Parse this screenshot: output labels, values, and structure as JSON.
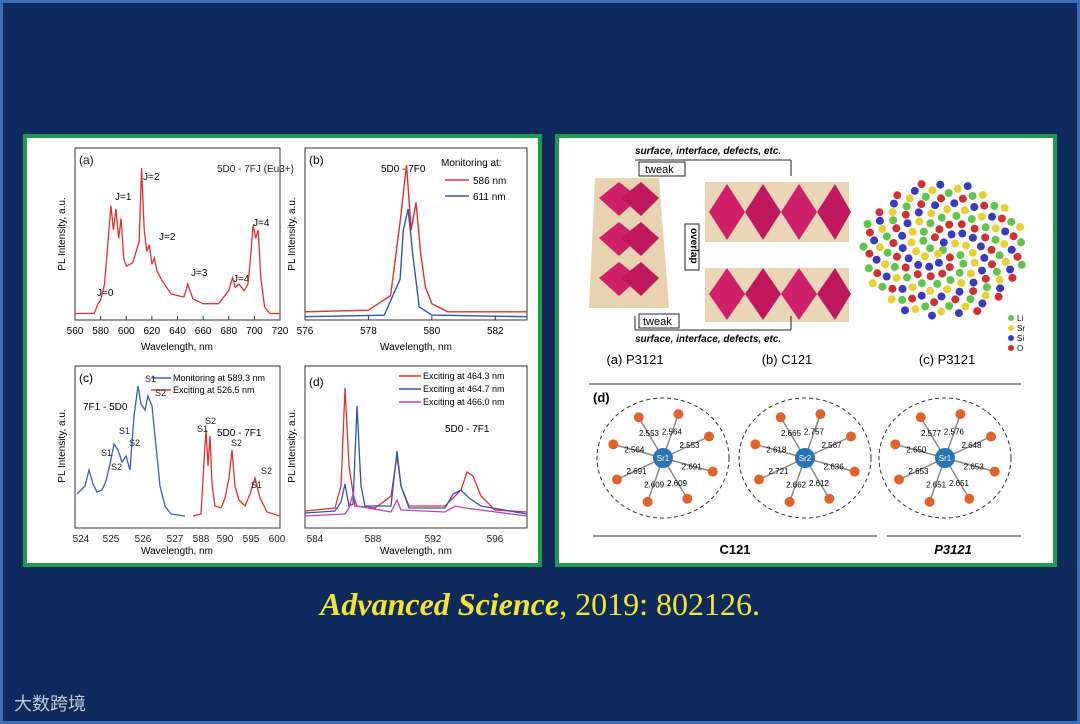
{
  "caption": {
    "journal": "Advanced Science",
    "details": ", 2019: 802126."
  },
  "watermark": "大数跨境",
  "colors": {
    "background": "#0e2a5c",
    "panel_border": "#1f9a4c",
    "caption": "#f3e52e"
  },
  "chart_data": [
    {
      "panel": "(a)",
      "type": "line",
      "xlabel": "Wavelength, nm",
      "ylabel": "PL Intensity, a.u.",
      "xlim": [
        560,
        720
      ],
      "xticks": [
        560,
        580,
        600,
        620,
        640,
        660,
        680,
        700,
        720
      ],
      "legend_title": "5D0 - 7FJ (Eu3+)",
      "annotations": [
        "J=0",
        "J=1",
        "J=2",
        "J=2",
        "J=3",
        "J=4",
        "J=4"
      ],
      "series": [
        {
          "color": "#e03030",
          "x": [
            560,
            575,
            578,
            580,
            583,
            586,
            588,
            590,
            592,
            594,
            596,
            598,
            600,
            605,
            610,
            612,
            614,
            616,
            618,
            620,
            622,
            624,
            628,
            635,
            645,
            648,
            652,
            660,
            672,
            680,
            683,
            685,
            688,
            692,
            695,
            697,
            699,
            701,
            703,
            705,
            708,
            712,
            720
          ],
          "y": [
            0.04,
            0.04,
            0.1,
            0.12,
            0.22,
            0.5,
            0.7,
            0.55,
            0.68,
            0.5,
            0.62,
            0.38,
            0.33,
            0.35,
            0.48,
            0.93,
            0.55,
            0.42,
            0.46,
            0.34,
            0.38,
            0.3,
            0.24,
            0.16,
            0.14,
            0.22,
            0.13,
            0.1,
            0.1,
            0.18,
            0.26,
            0.2,
            0.22,
            0.18,
            0.22,
            0.38,
            0.58,
            0.5,
            0.55,
            0.26,
            0.08,
            0.04,
            0.04
          ]
        }
      ]
    },
    {
      "panel": "(b)",
      "type": "line",
      "xlabel": "Wavelength, nm",
      "ylabel": "PL Intensity, a.u.",
      "xlim": [
        576,
        583
      ],
      "xticks": [
        576,
        578,
        580,
        582
      ],
      "annotation": "5D0 - 7F0",
      "legend_title": "Monitoring at:",
      "series": [
        {
          "name": "586 nm",
          "color": "#e03030",
          "x": [
            576,
            578,
            578.7,
            579.0,
            579.2,
            579.35,
            579.5,
            579.65,
            579.8,
            580.0,
            580.5,
            583
          ],
          "y": [
            0.05,
            0.06,
            0.15,
            0.6,
            0.95,
            0.55,
            0.72,
            0.4,
            0.2,
            0.1,
            0.05,
            0.05
          ]
        },
        {
          "name": "611 nm",
          "color": "#2f55b0",
          "x": [
            576,
            578.5,
            579.0,
            579.1,
            579.25,
            579.4,
            579.6,
            580,
            583
          ],
          "y": [
            0.02,
            0.03,
            0.25,
            0.55,
            0.68,
            0.4,
            0.08,
            0.03,
            0.02
          ]
        }
      ]
    },
    {
      "panel": "(c)",
      "type": "line",
      "xlabel": "Wavelength, nm",
      "ylabel": "PL Intensity, a.u.",
      "xticks": [
        524,
        525,
        526,
        527,
        588,
        590,
        595,
        600
      ],
      "axis_break": true,
      "annotations": [
        "7F1 - 5D0",
        "5D0 - 7F1",
        "S1",
        "S2"
      ],
      "series": [
        {
          "name": "Monitoring at 589.3 nm",
          "color": "#3a5fb8"
        },
        {
          "name": "Exciting at 526.5 nm",
          "color": "#e03030"
        }
      ]
    },
    {
      "panel": "(d)",
      "type": "line",
      "xlabel": "Wavelength, nm",
      "ylabel": "PL Intensity, a.u.",
      "xlim": [
        583,
        598
      ],
      "xticks": [
        584,
        588,
        592,
        596
      ],
      "annotation": "5D0 - 7F1",
      "series": [
        {
          "name": "Exciting at 464.3 nm",
          "color": "#e03030"
        },
        {
          "name": "Exciting at 464.7 nm",
          "color": "#2f55b0"
        },
        {
          "name": "Exciting at 466.0 nm",
          "color": "#c040c0"
        }
      ]
    }
  ],
  "structure": {
    "top_label": "surface, interface, defects, etc.",
    "bottom_label": "surface, interface, defects, etc.",
    "tweak": "tweak",
    "overlap": "overlap",
    "labels": [
      "(a) P3121",
      "(b) C121",
      "(c) P3121"
    ],
    "legend": [
      "Li",
      "Sr",
      "Si",
      "O"
    ],
    "panel_d": "(d)",
    "groups": [
      "C121",
      "P3121"
    ],
    "clusters": [
      {
        "center": "Sr1",
        "distances": [
          "2.564",
          "2.553",
          "2.691",
          "2.609",
          "2.609",
          "2.691",
          "2.564",
          "2.553"
        ]
      },
      {
        "center": "Sr2",
        "distances": [
          "2.757",
          "2.567",
          "2.636",
          "2.612",
          "2.662",
          "2.721",
          "2.618",
          "2.665"
        ]
      },
      {
        "center": "Sr1",
        "distances": [
          "2.576",
          "2.648",
          "2.653",
          "2.651",
          "2.651",
          "2.653",
          "2.650",
          "2.577"
        ]
      }
    ]
  }
}
